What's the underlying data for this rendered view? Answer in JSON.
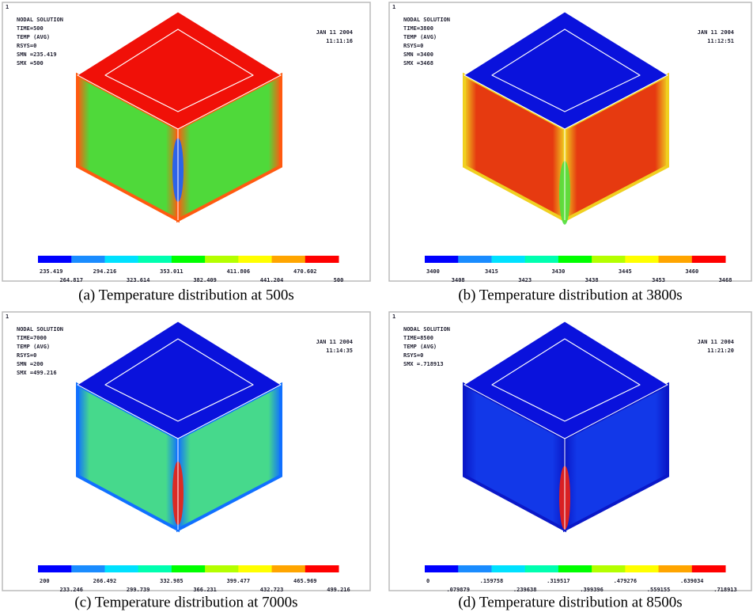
{
  "panels": [
    {
      "caption": "(a) Temperature distribution at 500s",
      "index": "1",
      "lines": [
        "NODAL SOLUTION",
        "TIME=500",
        "TEMP      (AVG)",
        "RSYS=0",
        "SMN =235.419",
        "SMX =500"
      ],
      "date": "JAN 11 2004",
      "time": "11:11:16",
      "legend_labels": [
        "235.419",
        "264.817",
        "294.216",
        "323.614",
        "353.011",
        "382.409",
        "411.806",
        "441.204",
        "470.602",
        "500"
      ]
    },
    {
      "caption": "(b) Temperature distribution at 3800s",
      "index": "1",
      "lines": [
        "NODAL SOLUTION",
        "TIME=3800",
        "TEMP      (AVG)",
        "RSYS=0",
        "SMN =3400",
        "SMX =3468"
      ],
      "date": "JAN 11 2004",
      "time": "11:12:51",
      "legend_labels": [
        "3400",
        "3408",
        "3415",
        "3423",
        "3430",
        "3438",
        "3445",
        "3453",
        "3460",
        "3468"
      ]
    },
    {
      "caption": "(c) Temperature distribution at 7000s",
      "index": "1",
      "lines": [
        "NODAL SOLUTION",
        "TIME=7000",
        "TEMP      (AVG)",
        "RSYS=0",
        "SMN =200",
        "SMX =499.216"
      ],
      "date": "JAN 11 2004",
      "time": "11:14:35",
      "legend_labels": [
        "200",
        "233.246",
        "266.492",
        "299.739",
        "332.985",
        "366.231",
        "399.477",
        "432.723",
        "465.969",
        "499.216"
      ]
    },
    {
      "caption": "(d) Temperature distribution at 8500s",
      "index": "1",
      "lines": [
        "NODAL SOLUTION",
        "TIME=8500",
        "TEMP      (AVG)",
        "RSYS=0",
        "SMX =.718913"
      ],
      "date": "JAN 11 2004",
      "time": "11:21:20",
      "legend_labels": [
        "0",
        ".079879",
        ".159758",
        ".239638",
        ".319517",
        ".399396",
        ".479276",
        ".559155",
        ".639034",
        ".718913"
      ]
    }
  ]
}
